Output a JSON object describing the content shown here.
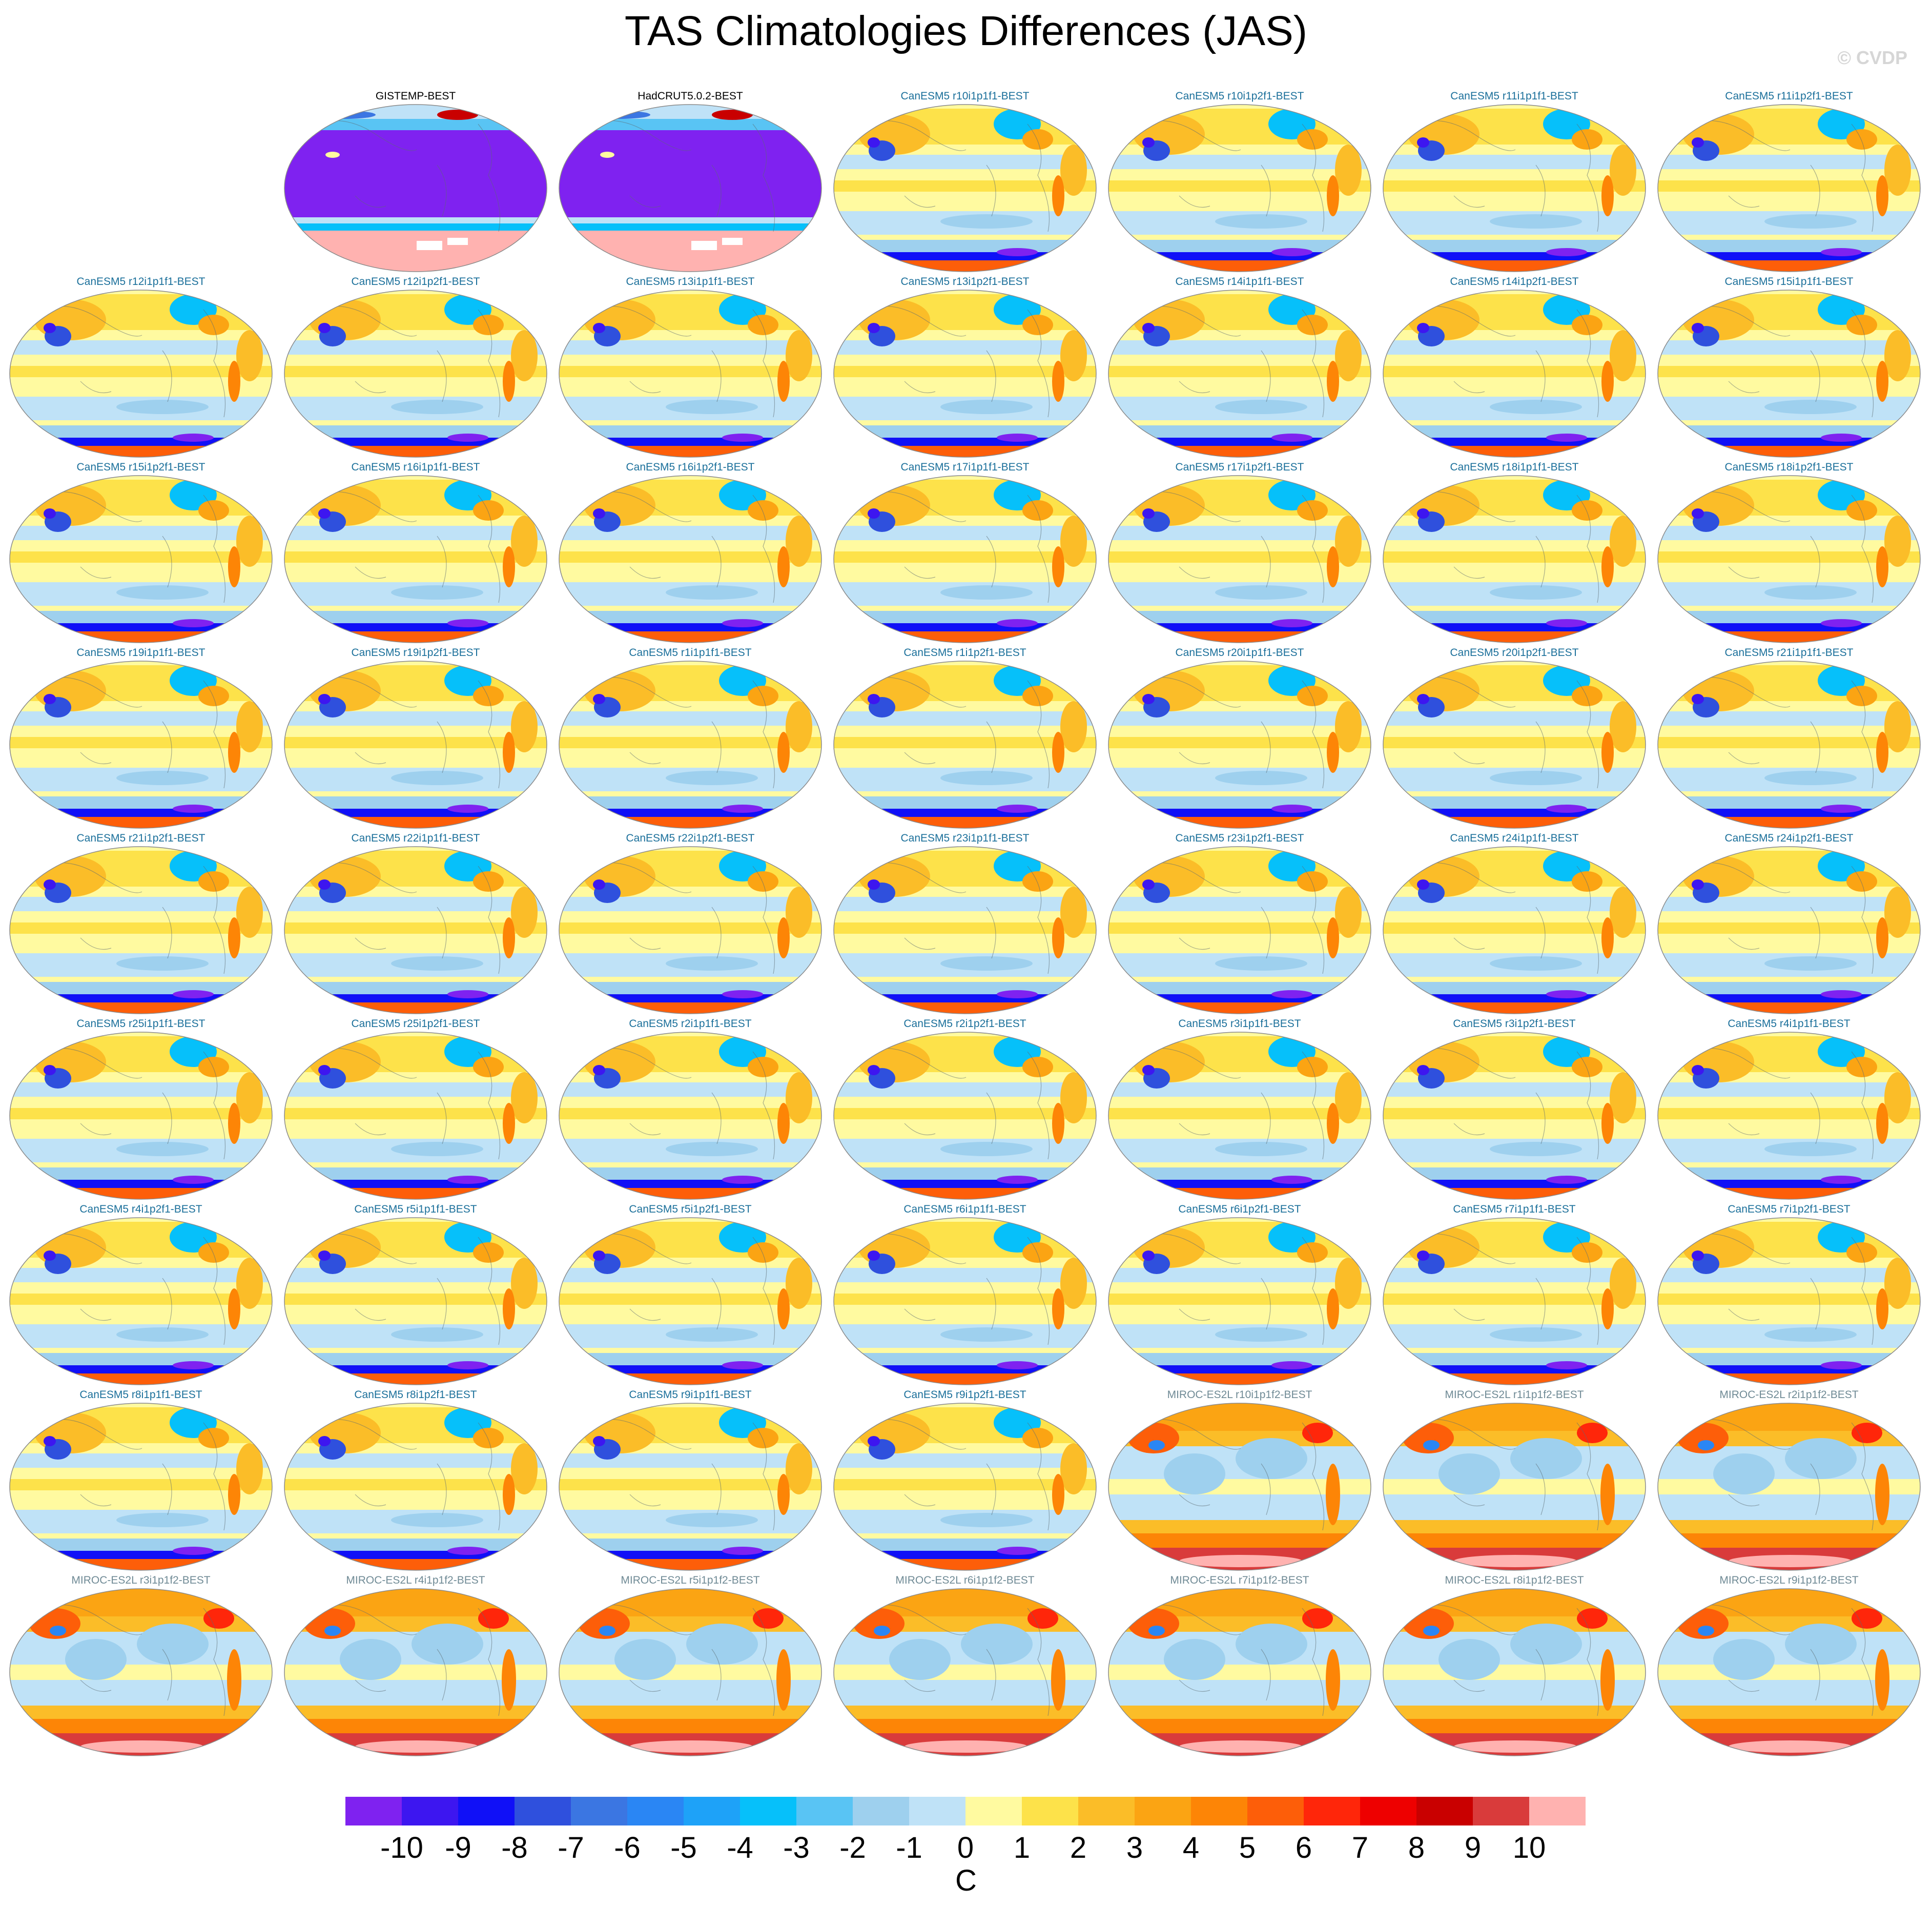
{
  "figure": {
    "title": "TAS Climatologies Differences (JAS)",
    "credit": "© CVDP",
    "units": "C"
  },
  "colorbar": {
    "colors": [
      "#7f22f0",
      "#3d16f0",
      "#1010f7",
      "#2f50dd",
      "#3b76e2",
      "#2a86f4",
      "#1ea2f8",
      "#06c0fa",
      "#59c4f4",
      "#9ed0ee",
      "#bfe2f7",
      "#fffaa0",
      "#fde24a",
      "#fbbd28",
      "#fba413",
      "#fd8506",
      "#fd5e09",
      "#ff260a",
      "#ee0000",
      "#c90000",
      "#d93b3b",
      "#ffb2b0"
    ],
    "tick_labels": [
      "-10",
      "-9",
      "-8",
      "-7",
      "-6",
      "-5",
      "-4",
      "-3",
      "-2",
      "-1",
      "0",
      "1",
      "2",
      "3",
      "4",
      "5",
      "6",
      "7",
      "8",
      "9",
      "10"
    ]
  },
  "panels": [
    {
      "title": "GISTEMP-BEST",
      "style": "obs"
    },
    {
      "title": "HadCRUT5.0.2-BEST",
      "style": "obs"
    },
    {
      "title": "CanESM5 r10i1p1f1-BEST",
      "style": "canesm"
    },
    {
      "title": "CanESM5 r10i1p2f1-BEST",
      "style": "canesm"
    },
    {
      "title": "CanESM5 r11i1p1f1-BEST",
      "style": "canesm"
    },
    {
      "title": "CanESM5 r11i1p2f1-BEST",
      "style": "canesm"
    },
    {
      "title": "CanESM5 r12i1p1f1-BEST",
      "style": "canesm"
    },
    {
      "title": "CanESM5 r12i1p2f1-BEST",
      "style": "canesm"
    },
    {
      "title": "CanESM5 r13i1p1f1-BEST",
      "style": "canesm"
    },
    {
      "title": "CanESM5 r13i1p2f1-BEST",
      "style": "canesm"
    },
    {
      "title": "CanESM5 r14i1p1f1-BEST",
      "style": "canesm"
    },
    {
      "title": "CanESM5 r14i1p2f1-BEST",
      "style": "canesm"
    },
    {
      "title": "CanESM5 r15i1p1f1-BEST",
      "style": "canesm"
    },
    {
      "title": "CanESM5 r15i1p2f1-BEST",
      "style": "canesm"
    },
    {
      "title": "CanESM5 r16i1p1f1-BEST",
      "style": "canesm"
    },
    {
      "title": "CanESM5 r16i1p2f1-BEST",
      "style": "canesm"
    },
    {
      "title": "CanESM5 r17i1p1f1-BEST",
      "style": "canesm"
    },
    {
      "title": "CanESM5 r17i1p2f1-BEST",
      "style": "canesm"
    },
    {
      "title": "CanESM5 r18i1p1f1-BEST",
      "style": "canesm"
    },
    {
      "title": "CanESM5 r18i1p2f1-BEST",
      "style": "canesm"
    },
    {
      "title": "CanESM5 r19i1p1f1-BEST",
      "style": "canesm"
    },
    {
      "title": "CanESM5 r19i1p2f1-BEST",
      "style": "canesm"
    },
    {
      "title": "CanESM5 r1i1p1f1-BEST",
      "style": "canesm"
    },
    {
      "title": "CanESM5 r1i1p2f1-BEST",
      "style": "canesm"
    },
    {
      "title": "CanESM5 r20i1p1f1-BEST",
      "style": "canesm"
    },
    {
      "title": "CanESM5 r20i1p2f1-BEST",
      "style": "canesm"
    },
    {
      "title": "CanESM5 r21i1p1f1-BEST",
      "style": "canesm"
    },
    {
      "title": "CanESM5 r21i1p2f1-BEST",
      "style": "canesm"
    },
    {
      "title": "CanESM5 r22i1p1f1-BEST",
      "style": "canesm"
    },
    {
      "title": "CanESM5 r22i1p2f1-BEST",
      "style": "canesm"
    },
    {
      "title": "CanESM5 r23i1p1f1-BEST",
      "style": "canesm"
    },
    {
      "title": "CanESM5 r23i1p2f1-BEST",
      "style": "canesm"
    },
    {
      "title": "CanESM5 r24i1p1f1-BEST",
      "style": "canesm"
    },
    {
      "title": "CanESM5 r24i1p2f1-BEST",
      "style": "canesm"
    },
    {
      "title": "CanESM5 r25i1p1f1-BEST",
      "style": "canesm"
    },
    {
      "title": "CanESM5 r25i1p2f1-BEST",
      "style": "canesm"
    },
    {
      "title": "CanESM5 r2i1p1f1-BEST",
      "style": "canesm"
    },
    {
      "title": "CanESM5 r2i1p2f1-BEST",
      "style": "canesm"
    },
    {
      "title": "CanESM5 r3i1p1f1-BEST",
      "style": "canesm"
    },
    {
      "title": "CanESM5 r3i1p2f1-BEST",
      "style": "canesm"
    },
    {
      "title": "CanESM5 r4i1p1f1-BEST",
      "style": "canesm"
    },
    {
      "title": "CanESM5 r4i1p2f1-BEST",
      "style": "canesm"
    },
    {
      "title": "CanESM5 r5i1p1f1-BEST",
      "style": "canesm"
    },
    {
      "title": "CanESM5 r5i1p2f1-BEST",
      "style": "canesm"
    },
    {
      "title": "CanESM5 r6i1p1f1-BEST",
      "style": "canesm"
    },
    {
      "title": "CanESM5 r6i1p2f1-BEST",
      "style": "canesm"
    },
    {
      "title": "CanESM5 r7i1p1f1-BEST",
      "style": "canesm"
    },
    {
      "title": "CanESM5 r7i1p2f1-BEST",
      "style": "canesm"
    },
    {
      "title": "CanESM5 r8i1p1f1-BEST",
      "style": "canesm"
    },
    {
      "title": "CanESM5 r8i1p2f1-BEST",
      "style": "canesm"
    },
    {
      "title": "CanESM5 r9i1p1f1-BEST",
      "style": "canesm"
    },
    {
      "title": "CanESM5 r9i1p2f1-BEST",
      "style": "canesm"
    },
    {
      "title": "MIROC-ES2L r10i1p1f2-BEST",
      "style": "miroc"
    },
    {
      "title": "MIROC-ES2L r1i1p1f2-BEST",
      "style": "miroc"
    },
    {
      "title": "MIROC-ES2L r2i1p1f2-BEST",
      "style": "miroc"
    },
    {
      "title": "MIROC-ES2L r3i1p1f2-BEST",
      "style": "miroc"
    },
    {
      "title": "MIROC-ES2L r4i1p1f2-BEST",
      "style": "miroc"
    },
    {
      "title": "MIROC-ES2L r5i1p1f2-BEST",
      "style": "miroc"
    },
    {
      "title": "MIROC-ES2L r6i1p1f2-BEST",
      "style": "miroc"
    },
    {
      "title": "MIROC-ES2L r7i1p1f2-BEST",
      "style": "miroc"
    },
    {
      "title": "MIROC-ES2L r8i1p1f2-BEST",
      "style": "miroc"
    },
    {
      "title": "MIROC-ES2L r9i1p1f2-BEST",
      "style": "miroc"
    }
  ]
}
